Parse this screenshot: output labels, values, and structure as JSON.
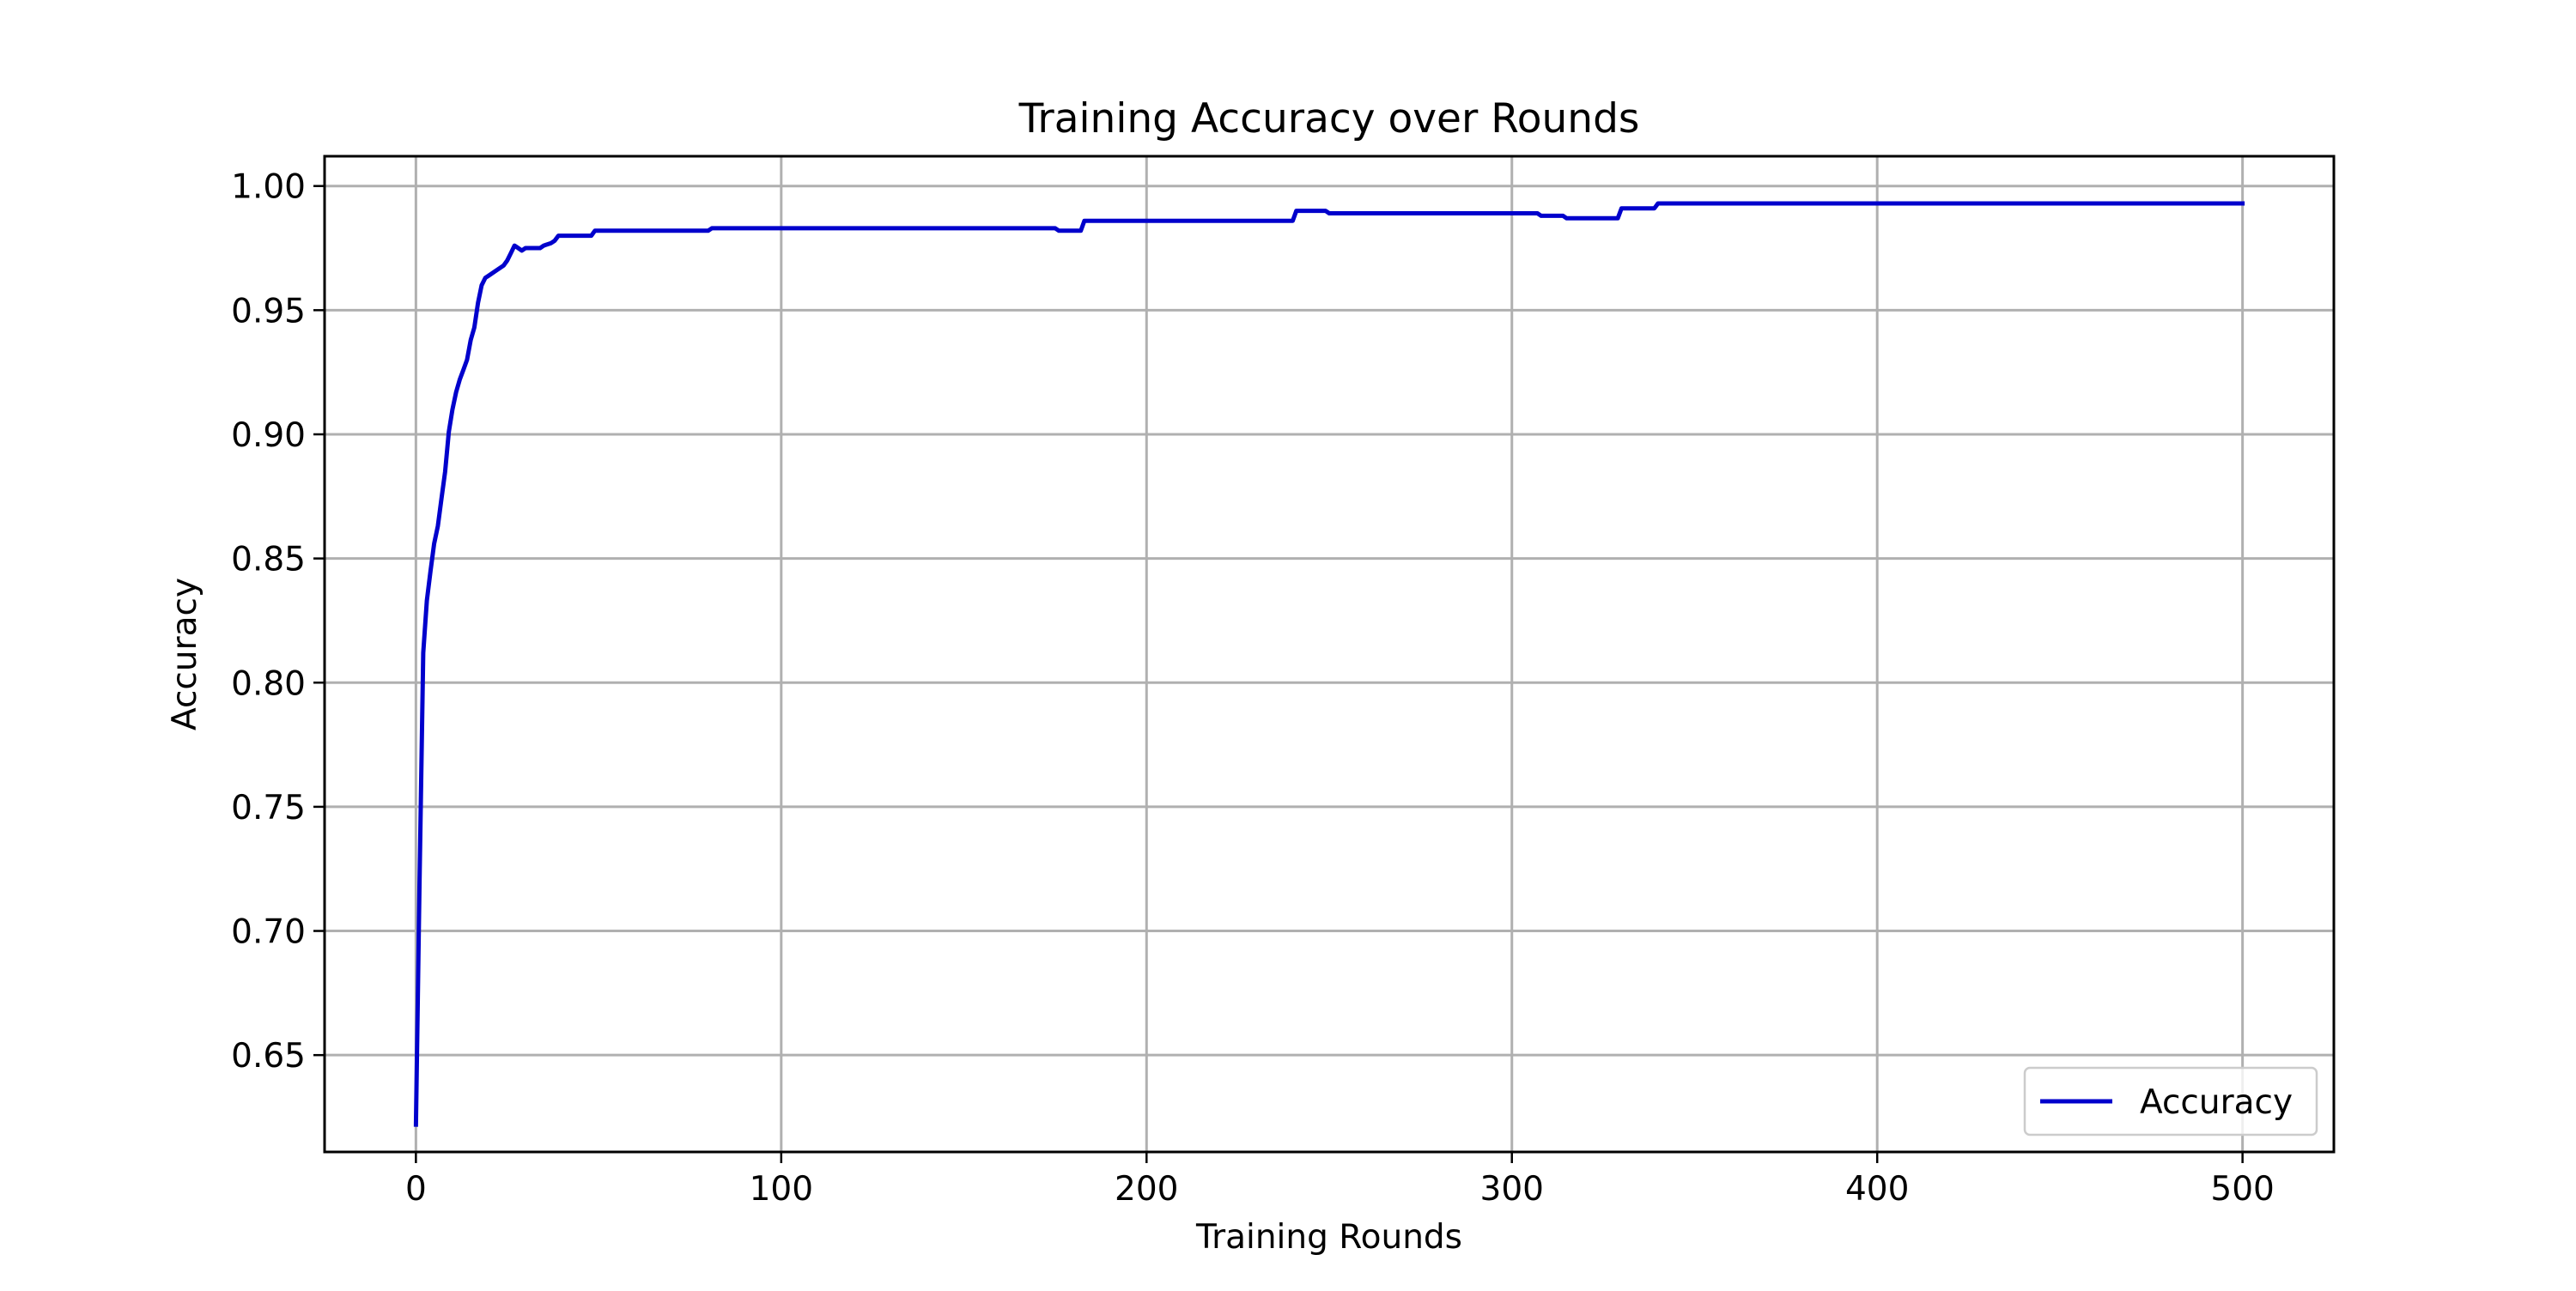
{
  "chart_data": {
    "type": "line",
    "title": "Training Accuracy over Rounds",
    "xlabel": "Training Rounds",
    "ylabel": "Accuracy",
    "xlim": [
      -25,
      525
    ],
    "ylim": [
      0.611,
      1.012
    ],
    "xticks": [
      0,
      100,
      200,
      300,
      400,
      500
    ],
    "xtick_labels": [
      "0",
      "100",
      "200",
      "300",
      "400",
      "500"
    ],
    "yticks": [
      0.65,
      0.7,
      0.75,
      0.8,
      0.85,
      0.9,
      0.95,
      1.0
    ],
    "ytick_labels": [
      "0.65",
      "0.70",
      "0.75",
      "0.80",
      "0.85",
      "0.90",
      "0.95",
      "1.00"
    ],
    "grid": true,
    "legend": "lower right",
    "series": [
      {
        "name": "Accuracy",
        "color": "#0000cc",
        "x": [
          0,
          1,
          2,
          3,
          4,
          5,
          6,
          7,
          8,
          9,
          10,
          11,
          12,
          13,
          14,
          15,
          16,
          17,
          18,
          19,
          20,
          22,
          24,
          25,
          26,
          27,
          28,
          29,
          30,
          34,
          35,
          37,
          38,
          39,
          48,
          49,
          80,
          81,
          175,
          176,
          182,
          183,
          240,
          241,
          249,
          250,
          307,
          308,
          314,
          315,
          329,
          330,
          339,
          340,
          500
        ],
        "y": [
          0.622,
          0.72,
          0.812,
          0.833,
          0.845,
          0.856,
          0.863,
          0.874,
          0.885,
          0.901,
          0.91,
          0.917,
          0.922,
          0.926,
          0.93,
          0.938,
          0.943,
          0.953,
          0.96,
          0.963,
          0.964,
          0.966,
          0.968,
          0.97,
          0.973,
          0.976,
          0.975,
          0.974,
          0.975,
          0.975,
          0.976,
          0.977,
          0.978,
          0.98,
          0.98,
          0.982,
          0.982,
          0.983,
          0.983,
          0.982,
          0.982,
          0.986,
          0.986,
          0.99,
          0.99,
          0.989,
          0.989,
          0.988,
          0.988,
          0.987,
          0.987,
          0.991,
          0.991,
          0.993,
          0.993
        ]
      }
    ]
  }
}
